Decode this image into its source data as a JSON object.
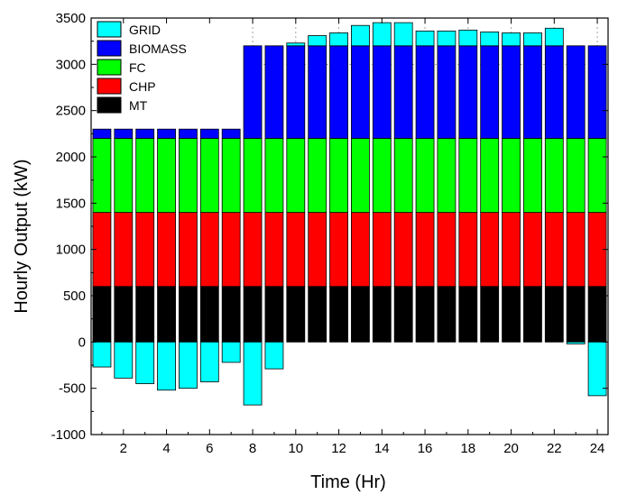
{
  "chart_data": {
    "type": "bar",
    "stacked": true,
    "title": "",
    "xlabel": "Time (Hr)",
    "ylabel": "Hourly Output (kW)",
    "ylim": [
      -1000,
      3500
    ],
    "yticks": [
      -1000,
      -500,
      0,
      500,
      1000,
      1500,
      2000,
      2500,
      3000,
      3500
    ],
    "xticks": [
      2,
      4,
      6,
      8,
      10,
      12,
      14,
      16,
      18,
      20,
      22,
      24
    ],
    "xlim": [
      0.5,
      24.5
    ],
    "categories": [
      1,
      2,
      3,
      4,
      5,
      6,
      7,
      8,
      9,
      10,
      11,
      12,
      13,
      14,
      15,
      16,
      17,
      18,
      19,
      20,
      21,
      22,
      23,
      24
    ],
    "legend_position": "top-left",
    "grid": "dashed gridlines at 3000 and 3500 (upper right)",
    "series": [
      {
        "name": "MT",
        "color": "#000000",
        "values": [
          600,
          600,
          600,
          600,
          600,
          600,
          600,
          600,
          600,
          600,
          600,
          600,
          600,
          600,
          600,
          600,
          600,
          600,
          600,
          600,
          600,
          600,
          600,
          600
        ]
      },
      {
        "name": "CHP",
        "color": "#ff0000",
        "values": [
          800,
          800,
          800,
          800,
          800,
          800,
          800,
          800,
          800,
          800,
          800,
          800,
          800,
          800,
          800,
          800,
          800,
          800,
          800,
          800,
          800,
          800,
          800,
          800
        ]
      },
      {
        "name": "FC",
        "color": "#00ff00",
        "values": [
          800,
          800,
          800,
          800,
          800,
          800,
          800,
          800,
          800,
          800,
          800,
          800,
          800,
          800,
          800,
          800,
          800,
          800,
          800,
          800,
          800,
          800,
          800,
          800
        ]
      },
      {
        "name": "BIOMASS",
        "color": "#0000ff",
        "values": [
          100,
          100,
          100,
          100,
          100,
          100,
          100,
          1000,
          1000,
          1000,
          1000,
          1000,
          1000,
          1000,
          1000,
          1000,
          1000,
          1000,
          1000,
          1000,
          1000,
          1000,
          1000,
          1000
        ]
      },
      {
        "name": "GRID",
        "color": "#00ffff",
        "values": [
          -270,
          -390,
          -450,
          -520,
          -500,
          -430,
          -220,
          -680,
          -290,
          30,
          110,
          140,
          220,
          250,
          250,
          160,
          160,
          170,
          150,
          140,
          140,
          190,
          -20,
          -580
        ]
      }
    ]
  }
}
